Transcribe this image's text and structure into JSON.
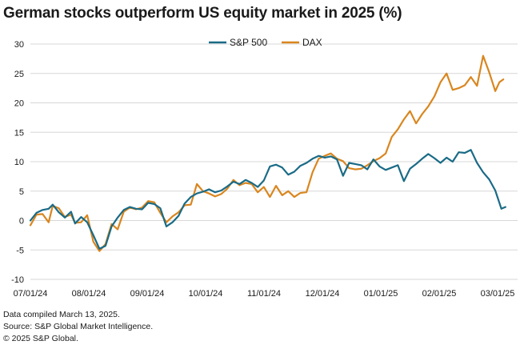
{
  "chart_data": {
    "type": "line",
    "title": "German stocks outperform US equity market in 2025 (%)",
    "xlabel": "",
    "ylabel": "",
    "ylim": [
      -10,
      30
    ],
    "yticks": [
      30,
      25,
      20,
      15,
      10,
      5,
      0,
      -5,
      -10
    ],
    "xtick_labels": [
      "07/01/24",
      "08/01/24",
      "09/01/24",
      "10/01/24",
      "11/01/24",
      "12/01/24",
      "01/01/25",
      "02/01/25",
      "03/01/25"
    ],
    "grid": true,
    "legend": "top-center",
    "series": [
      {
        "name": "S&P 500",
        "color": "#1a6b86",
        "points": [
          [
            0,
            0
          ],
          [
            3,
            1.3
          ],
          [
            6,
            1.8
          ],
          [
            9,
            2.0
          ],
          [
            11,
            2.7
          ],
          [
            14,
            1.4
          ],
          [
            17,
            0.5
          ],
          [
            20,
            1.5
          ],
          [
            22,
            -0.5
          ],
          [
            25,
            0.6
          ],
          [
            28,
            -0.3
          ],
          [
            31,
            -2.5
          ],
          [
            34,
            -4.8
          ],
          [
            37,
            -4.3
          ],
          [
            40,
            -1.0
          ],
          [
            43,
            0.5
          ],
          [
            46,
            1.8
          ],
          [
            49,
            2.3
          ],
          [
            52,
            2.0
          ],
          [
            55,
            1.9
          ],
          [
            58,
            3.0
          ],
          [
            61,
            2.8
          ],
          [
            64,
            2.1
          ],
          [
            67,
            -1.0
          ],
          [
            70,
            -0.3
          ],
          [
            73,
            0.8
          ],
          [
            76,
            2.9
          ],
          [
            79,
            4.0
          ],
          [
            82,
            4.6
          ],
          [
            85,
            4.9
          ],
          [
            88,
            5.3
          ],
          [
            91,
            4.8
          ],
          [
            94,
            5.1
          ],
          [
            97,
            5.8
          ],
          [
            100,
            6.6
          ],
          [
            103,
            6.2
          ],
          [
            106,
            6.9
          ],
          [
            109,
            6.4
          ],
          [
            112,
            5.7
          ],
          [
            115,
            6.8
          ],
          [
            118,
            9.2
          ],
          [
            121,
            9.5
          ],
          [
            124,
            9.0
          ],
          [
            127,
            7.8
          ],
          [
            130,
            8.3
          ],
          [
            133,
            9.3
          ],
          [
            136,
            9.8
          ],
          [
            139,
            10.5
          ],
          [
            142,
            11.0
          ],
          [
            145,
            10.7
          ],
          [
            148,
            10.9
          ],
          [
            151,
            10.4
          ],
          [
            154,
            7.6
          ],
          [
            157,
            9.8
          ],
          [
            160,
            9.6
          ],
          [
            163,
            9.4
          ],
          [
            166,
            8.7
          ],
          [
            169,
            10.4
          ],
          [
            172,
            9.2
          ],
          [
            175,
            8.6
          ],
          [
            178,
            9.0
          ],
          [
            181,
            9.4
          ],
          [
            184,
            6.7
          ],
          [
            187,
            8.8
          ],
          [
            190,
            9.6
          ],
          [
            193,
            10.5
          ],
          [
            196,
            11.3
          ],
          [
            199,
            10.6
          ],
          [
            202,
            9.8
          ],
          [
            205,
            10.7
          ],
          [
            208,
            10.0
          ],
          [
            211,
            11.6
          ],
          [
            214,
            11.5
          ],
          [
            217,
            12.0
          ],
          [
            220,
            9.8
          ],
          [
            223,
            8.2
          ],
          [
            226,
            7.0
          ],
          [
            229,
            5.1
          ],
          [
            232,
            2.0
          ],
          [
            234,
            2.3
          ]
        ]
      },
      {
        "name": "DAX",
        "color": "#d9861f",
        "points": [
          [
            0,
            -0.8
          ],
          [
            3,
            1.0
          ],
          [
            6,
            1.1
          ],
          [
            9,
            -0.3
          ],
          [
            11,
            2.5
          ],
          [
            14,
            2.1
          ],
          [
            17,
            0.6
          ],
          [
            20,
            1.0
          ],
          [
            22,
            -0.4
          ],
          [
            25,
            -0.3
          ],
          [
            28,
            0.9
          ],
          [
            31,
            -3.6
          ],
          [
            34,
            -5.2
          ],
          [
            37,
            -4.0
          ],
          [
            40,
            -0.6
          ],
          [
            43,
            -1.5
          ],
          [
            46,
            1.5
          ],
          [
            49,
            2.2
          ],
          [
            52,
            1.9
          ],
          [
            55,
            2.2
          ],
          [
            58,
            3.3
          ],
          [
            61,
            3.1
          ],
          [
            64,
            1.3
          ],
          [
            67,
            -0.3
          ],
          [
            70,
            0.7
          ],
          [
            73,
            1.4
          ],
          [
            76,
            2.6
          ],
          [
            79,
            2.7
          ],
          [
            82,
            6.2
          ],
          [
            85,
            5.0
          ],
          [
            88,
            4.6
          ],
          [
            91,
            4.1
          ],
          [
            94,
            4.5
          ],
          [
            97,
            5.4
          ],
          [
            100,
            6.9
          ],
          [
            103,
            6.0
          ],
          [
            106,
            6.4
          ],
          [
            109,
            6.2
          ],
          [
            112,
            4.8
          ],
          [
            115,
            5.7
          ],
          [
            118,
            4.0
          ],
          [
            121,
            5.9
          ],
          [
            124,
            4.3
          ],
          [
            127,
            5.0
          ],
          [
            130,
            4.0
          ],
          [
            133,
            4.7
          ],
          [
            136,
            4.8
          ],
          [
            139,
            8.2
          ],
          [
            142,
            10.5
          ],
          [
            145,
            11.0
          ],
          [
            148,
            11.4
          ],
          [
            151,
            10.5
          ],
          [
            154,
            10.1
          ],
          [
            157,
            8.9
          ],
          [
            160,
            8.7
          ],
          [
            163,
            8.8
          ],
          [
            166,
            9.4
          ],
          [
            169,
            10.1
          ],
          [
            172,
            10.6
          ],
          [
            175,
            11.4
          ],
          [
            178,
            14.2
          ],
          [
            181,
            15.5
          ],
          [
            184,
            17.2
          ],
          [
            187,
            18.6
          ],
          [
            190,
            16.5
          ],
          [
            193,
            18.1
          ],
          [
            196,
            19.4
          ],
          [
            199,
            21.1
          ],
          [
            202,
            23.5
          ],
          [
            205,
            25.0
          ],
          [
            208,
            22.2
          ],
          [
            211,
            22.5
          ],
          [
            214,
            23.0
          ],
          [
            217,
            24.4
          ],
          [
            220,
            22.9
          ],
          [
            223,
            28.0
          ],
          [
            226,
            25.2
          ],
          [
            229,
            22.0
          ],
          [
            231,
            23.5
          ],
          [
            233,
            24.0
          ]
        ]
      }
    ],
    "notes": [
      "Data compiled March 13, 2025.",
      "Source: S&P Global Market Intelligence.",
      "© 2025 S&P Global."
    ]
  }
}
